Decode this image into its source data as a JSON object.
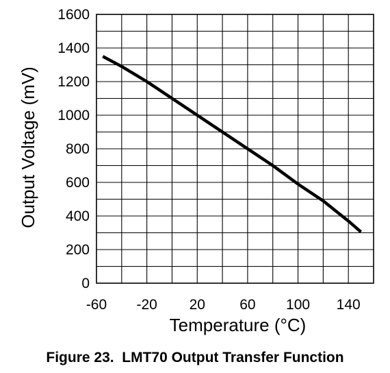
{
  "chart_data": {
    "type": "line",
    "title": "",
    "caption": "Figure 23.  LMT70 Output Transfer Function",
    "xlabel": "Temperature (°C)",
    "ylabel": "Output Voltage (mV)",
    "xlim": [
      -60,
      160
    ],
    "ylim": [
      0,
      1600
    ],
    "x_ticks": [
      -60,
      -20,
      20,
      60,
      100,
      140
    ],
    "y_ticks": [
      0,
      200,
      400,
      600,
      800,
      1000,
      1200,
      1400,
      1600
    ],
    "x_minor_step": 20,
    "y_minor_step": 100,
    "grid": true,
    "legend": "none",
    "series": [
      {
        "x": [
          -55,
          -40,
          -20,
          0,
          20,
          40,
          60,
          80,
          100,
          120,
          140,
          150
        ],
        "y": [
          1350,
          1290,
          1200,
          1100,
          1000,
          900,
          800,
          700,
          590,
          490,
          370,
          305
        ],
        "color": "#000000"
      }
    ]
  }
}
